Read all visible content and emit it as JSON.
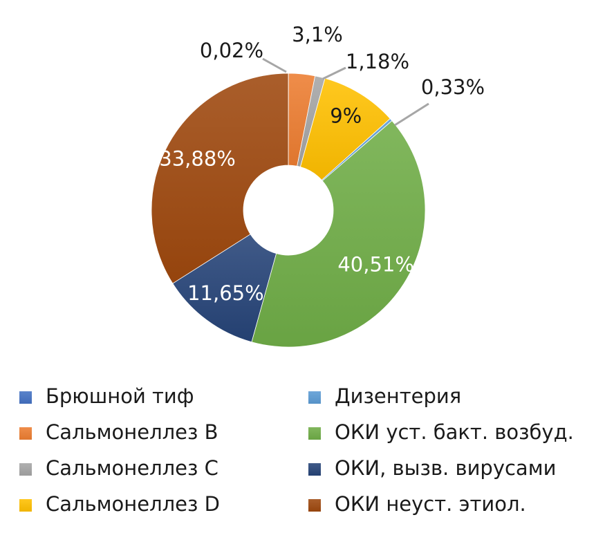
{
  "chart_data": {
    "type": "pie",
    "donut": true,
    "categories": [
      "Брюшной тиф",
      "Сальмонеллез В",
      "Сальмонеллез С",
      "Сальмонеллез D",
      "Дизентерия",
      "ОКИ уст. бакт. возбуд.",
      "ОКИ, вызв. вирусами",
      "ОКИ неуст. этиол."
    ],
    "values": [
      0.02,
      3.1,
      1.18,
      9,
      0.33,
      40.51,
      11.65,
      33.88
    ],
    "value_labels": [
      "0,02%",
      "3,1%",
      "1,18%",
      "9%",
      "0,33%",
      "40,51%",
      "11,65%",
      "33,88%"
    ],
    "colors": [
      "#4472C4",
      "#ED7D31",
      "#A5A5A5",
      "#FFC000",
      "#5B9BD5",
      "#70AD47",
      "#264478",
      "#9E480E"
    ],
    "legend_placement": "bottom"
  }
}
